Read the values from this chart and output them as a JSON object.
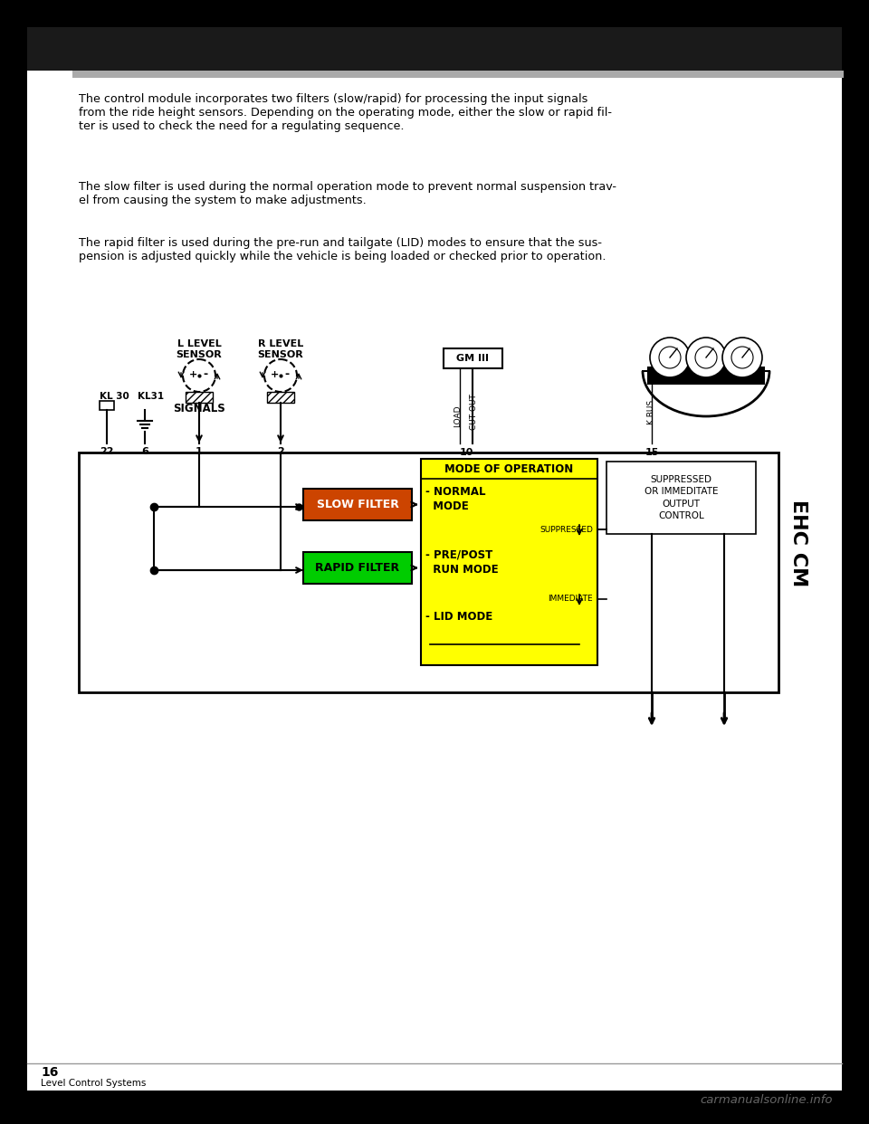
{
  "page_bg": "#000000",
  "content_bg": "#ffffff",
  "para1": "The control module incorporates two filters (slow/rapid) for processing the input signals\nfrom the ride height sensors. Depending on the operating mode, either the slow or rapid fil-\nter is used to check the need for a regulating sequence.",
  "para2": "The slow filter is used during the normal operation mode to prevent normal suspension trav-\nel from causing the system to make adjustments.",
  "para3": "The rapid filter is used during the pre-run and tailgate (LID) modes to ensure that the sus-\npension is adjusted quickly while the vehicle is being loaded or checked prior to operation.",
  "page_number": "16",
  "footer_text": "Level Control Systems",
  "watermark": "carmanualsonline.info",
  "diagram": {
    "kl30_label": "KL 30",
    "kl31_label": "KL31",
    "signals_label": "SIGNALS",
    "num_22": "22",
    "num_6": "6",
    "num_1": "1",
    "num_2": "2",
    "num_10": "10",
    "num_15": "15",
    "l_level_sensor": "L LEVEL\nSENSOR",
    "r_level_sensor": "R LEVEL\nSENSOR",
    "gm_iii": "GM III",
    "load_label": "LOAD",
    "cut_out_label": "CUT OUT",
    "k_bus_label": "K BUS",
    "slow_filter": "SLOW FILTER",
    "rapid_filter": "RAPID FILTER",
    "mode_of_operation": "MODE OF OPERATION",
    "normal_mode": "- NORMAL\n  MODE",
    "pre_post_run": "- PRE/POST\n  RUN MODE",
    "lid_mode": "- LID MODE",
    "suppressed": "SUPPRESSED",
    "immediate": "IMMEDIATE",
    "suppressed_output": "SUPPRESSED\nOR IMMEDITATE\nOUTPUT\nCONTROL",
    "ehc_cm": "EHC CM",
    "slow_filter_color": "#cc4400",
    "rapid_filter_color": "#00cc00",
    "mode_box_color": "#ffff00",
    "mode_header_color": "#ffff00"
  }
}
